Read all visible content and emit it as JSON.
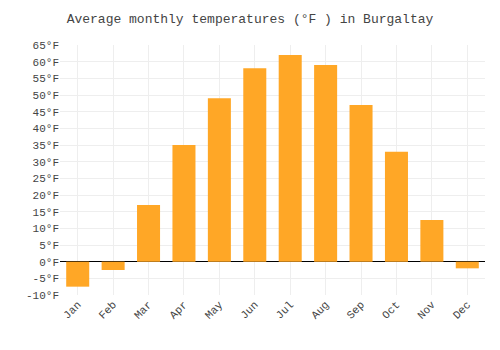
{
  "chart_data": {
    "type": "bar",
    "title": "Average monthly temperatures (°F ) in Burgaltay",
    "categories": [
      "Jan",
      "Feb",
      "Mar",
      "Apr",
      "May",
      "Jun",
      "Jul",
      "Aug",
      "Sep",
      "Oct",
      "Nov",
      "Dec"
    ],
    "values": [
      -7.5,
      -2.5,
      17,
      35,
      49,
      58,
      62,
      59,
      47,
      33,
      12.5,
      -2
    ],
    "color": "#FFA726",
    "ylim": [
      -10,
      65
    ],
    "yticks": [
      {
        "value": -10,
        "label": "-10°F"
      },
      {
        "value": -5,
        "label": "-5°F"
      },
      {
        "value": 0,
        "label": "0°F"
      },
      {
        "value": 5,
        "label": "5°F"
      },
      {
        "value": 10,
        "label": "10°F"
      },
      {
        "value": 15,
        "label": "15°F"
      },
      {
        "value": 20,
        "label": "20°F"
      },
      {
        "value": 25,
        "label": "25°F"
      },
      {
        "value": 30,
        "label": "30°F"
      },
      {
        "value": 35,
        "label": "35°F"
      },
      {
        "value": 40,
        "label": "40°F"
      },
      {
        "value": 45,
        "label": "45°F"
      },
      {
        "value": 50,
        "label": "50°F"
      },
      {
        "value": 55,
        "label": "55°F"
      },
      {
        "value": 60,
        "label": "60°F"
      },
      {
        "value": 65,
        "label": "65°F"
      }
    ],
    "grid": true
  }
}
